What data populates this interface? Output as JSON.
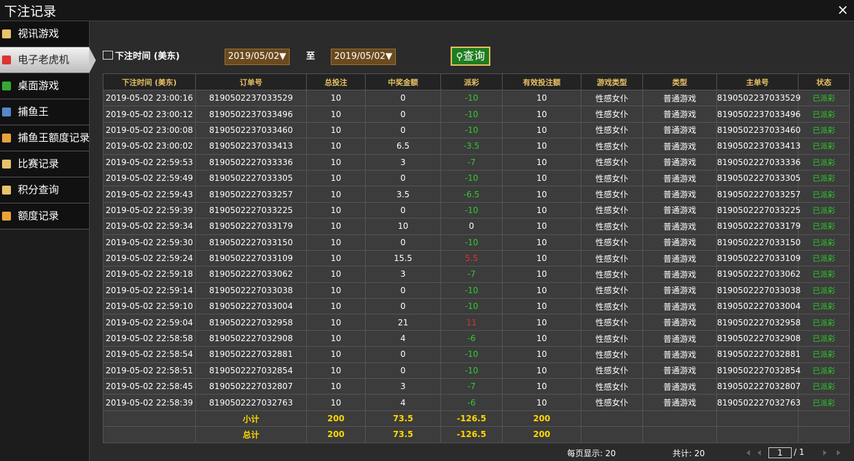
{
  "header": {
    "title": "下注记录",
    "close": "×"
  },
  "sidebar": [
    "视讯游戏",
    "电子老虎机",
    "桌面游戏",
    "捕鱼王",
    "捕鱼王额度记录",
    "比赛记录",
    "积分查询",
    "额度记录"
  ],
  "filter": {
    "label": "下注时间 (美东)",
    "start": "2019/05/02▼",
    "to": "至",
    "end": "2019/05/02▼",
    "button": "查询"
  },
  "table": {
    "columns": [
      "下注时间 (美东)",
      "订单号",
      "总投注",
      "中奖金额",
      "派彩",
      "有效投注额",
      "游戏类型",
      "类型",
      "主单号",
      "状态"
    ],
    "rows": [
      [
        "2019-05-02 23:00:16",
        "8190502237033529",
        "10",
        "0",
        "-10",
        "10",
        "性感女仆",
        "普通游戏",
        "8190502237033529",
        "已派彩"
      ],
      [
        "2019-05-02 23:00:12",
        "8190502237033496",
        "10",
        "0",
        "-10",
        "10",
        "性感女仆",
        "普通游戏",
        "8190502237033496",
        "已派彩"
      ],
      [
        "2019-05-02 23:00:08",
        "8190502237033460",
        "10",
        "0",
        "-10",
        "10",
        "性感女仆",
        "普通游戏",
        "8190502237033460",
        "已派彩"
      ],
      [
        "2019-05-02 23:00:02",
        "8190502237033413",
        "10",
        "6.5",
        "-3.5",
        "10",
        "性感女仆",
        "普通游戏",
        "8190502237033413",
        "已派彩"
      ],
      [
        "2019-05-02 22:59:53",
        "8190502227033336",
        "10",
        "3",
        "-7",
        "10",
        "性感女仆",
        "普通游戏",
        "8190502227033336",
        "已派彩"
      ],
      [
        "2019-05-02 22:59:49",
        "8190502227033305",
        "10",
        "0",
        "-10",
        "10",
        "性感女仆",
        "普通游戏",
        "8190502227033305",
        "已派彩"
      ],
      [
        "2019-05-02 22:59:43",
        "8190502227033257",
        "10",
        "3.5",
        "-6.5",
        "10",
        "性感女仆",
        "普通游戏",
        "8190502227033257",
        "已派彩"
      ],
      [
        "2019-05-02 22:59:39",
        "8190502227033225",
        "10",
        "0",
        "-10",
        "10",
        "性感女仆",
        "普通游戏",
        "8190502227033225",
        "已派彩"
      ],
      [
        "2019-05-02 22:59:34",
        "8190502227033179",
        "10",
        "10",
        "0",
        "10",
        "性感女仆",
        "普通游戏",
        "8190502227033179",
        "已派彩"
      ],
      [
        "2019-05-02 22:59:30",
        "8190502227033150",
        "10",
        "0",
        "-10",
        "10",
        "性感女仆",
        "普通游戏",
        "8190502227033150",
        "已派彩"
      ],
      [
        "2019-05-02 22:59:24",
        "8190502227033109",
        "10",
        "15.5",
        "5.5",
        "10",
        "性感女仆",
        "普通游戏",
        "8190502227033109",
        "已派彩"
      ],
      [
        "2019-05-02 22:59:18",
        "8190502227033062",
        "10",
        "3",
        "-7",
        "10",
        "性感女仆",
        "普通游戏",
        "8190502227033062",
        "已派彩"
      ],
      [
        "2019-05-02 22:59:14",
        "8190502227033038",
        "10",
        "0",
        "-10",
        "10",
        "性感女仆",
        "普通游戏",
        "8190502227033038",
        "已派彩"
      ],
      [
        "2019-05-02 22:59:10",
        "8190502227033004",
        "10",
        "0",
        "-10",
        "10",
        "性感女仆",
        "普通游戏",
        "8190502227033004",
        "已派彩"
      ],
      [
        "2019-05-02 22:59:04",
        "8190502227032958",
        "10",
        "21",
        "11",
        "10",
        "性感女仆",
        "普通游戏",
        "8190502227032958",
        "已派彩"
      ],
      [
        "2019-05-02 22:58:58",
        "8190502227032908",
        "10",
        "4",
        "-6",
        "10",
        "性感女仆",
        "普通游戏",
        "8190502227032908",
        "已派彩"
      ],
      [
        "2019-05-02 22:58:54",
        "8190502227032881",
        "10",
        "0",
        "-10",
        "10",
        "性感女仆",
        "普通游戏",
        "8190502227032881",
        "已派彩"
      ],
      [
        "2019-05-02 22:58:51",
        "8190502227032854",
        "10",
        "0",
        "-10",
        "10",
        "性感女仆",
        "普通游戏",
        "8190502227032854",
        "已派彩"
      ],
      [
        "2019-05-02 22:58:45",
        "8190502227032807",
        "10",
        "3",
        "-7",
        "10",
        "性感女仆",
        "普通游戏",
        "8190502227032807",
        "已派彩"
      ],
      [
        "2019-05-02 22:58:39",
        "8190502227032763",
        "10",
        "4",
        "-6",
        "10",
        "性感女仆",
        "普通游戏",
        "8190502227032763",
        "已派彩"
      ]
    ],
    "subtotal": [
      "小计",
      "200",
      "73.5",
      "-126.5",
      "200"
    ],
    "total": [
      "总计",
      "200",
      "73.5",
      "-126.5",
      "200"
    ]
  },
  "footer": {
    "page_size": "每页显示: 20",
    "count": "共计: 20",
    "page": "1",
    "of": "/ 1"
  }
}
